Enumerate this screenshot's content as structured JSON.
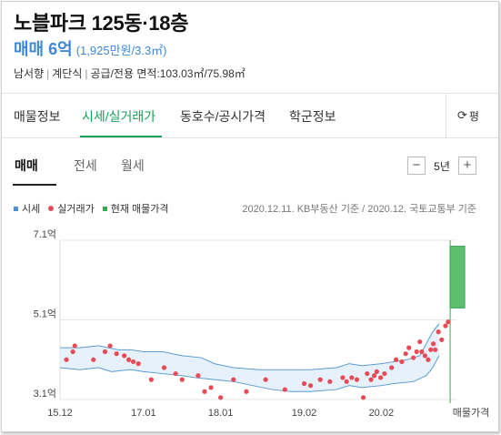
{
  "header": {
    "title": "노블파크 125동·18층",
    "price": "매매 6억",
    "price_detail": "(1,925만원/3.3㎡)"
  },
  "info": {
    "direction": "남서향",
    "structure": "계단식",
    "area": "공급/전용 면적:103.03㎡/75.98㎡"
  },
  "tabs": [
    {
      "label": "매물정보"
    },
    {
      "label": "시세/실거래가"
    },
    {
      "label": "동호수/공시가격"
    },
    {
      "label": "학군정보"
    }
  ],
  "refresh_label": "평",
  "subtabs": [
    {
      "label": "매매"
    },
    {
      "label": "전세"
    },
    {
      "label": "월세"
    }
  ],
  "period": {
    "minus": "−",
    "value": "5년",
    "plus": "+"
  },
  "legend": [
    {
      "label": "시세",
      "color": "#4a90d9"
    },
    {
      "label": "실거래가",
      "color": "#e84b55"
    },
    {
      "label": "현재 매물가격",
      "color": "#35a853"
    }
  ],
  "source_note": "2020.12.11. KB부동산 기준 / 2020.12. 국토교통부 기준",
  "chart_data": {
    "type": "scatter",
    "ylim": [
      3.1,
      7.1
    ],
    "y_ticks": [
      {
        "value": 7.1,
        "label": "7.1억"
      },
      {
        "value": 5.1,
        "label": "5.1억"
      },
      {
        "value": 3.1,
        "label": "3.1억"
      }
    ],
    "x_ticks": [
      {
        "t": 0,
        "label": "15.12"
      },
      {
        "t": 13,
        "label": "17.01"
      },
      {
        "t": 25,
        "label": "18.01"
      },
      {
        "t": 38,
        "label": "19.02"
      },
      {
        "t": 50,
        "label": "20.02"
      }
    ],
    "x_end_label": "매물가격",
    "t_range": [
      0,
      60
    ],
    "band_upper": [
      [
        0,
        4.4
      ],
      [
        3,
        4.4
      ],
      [
        6,
        4.45
      ],
      [
        9,
        4.35
      ],
      [
        11,
        4.35
      ],
      [
        13,
        4.3
      ],
      [
        16,
        4.3
      ],
      [
        19,
        4.2
      ],
      [
        22,
        4.15
      ],
      [
        24,
        4.0
      ],
      [
        27,
        3.9
      ],
      [
        31,
        3.85
      ],
      [
        35,
        3.85
      ],
      [
        39,
        3.85
      ],
      [
        43,
        3.9
      ],
      [
        45,
        4.0
      ],
      [
        47,
        3.95
      ],
      [
        50,
        4.0
      ],
      [
        52,
        4.05
      ],
      [
        54,
        4.1
      ],
      [
        56,
        4.2
      ],
      [
        57,
        4.5
      ],
      [
        58,
        4.8
      ],
      [
        59,
        5.0
      ]
    ],
    "band_lower": [
      [
        0,
        3.9
      ],
      [
        3,
        3.85
      ],
      [
        6,
        3.9
      ],
      [
        8,
        3.8
      ],
      [
        11,
        3.85
      ],
      [
        13,
        3.8
      ],
      [
        16,
        3.75
      ],
      [
        19,
        3.7
      ],
      [
        21,
        3.65
      ],
      [
        24,
        3.6
      ],
      [
        27,
        3.55
      ],
      [
        30,
        3.45
      ],
      [
        33,
        3.35
      ],
      [
        36,
        3.3
      ],
      [
        39,
        3.3
      ],
      [
        43,
        3.35
      ],
      [
        45,
        3.45
      ],
      [
        47,
        3.4
      ],
      [
        50,
        3.45
      ],
      [
        52,
        3.5
      ],
      [
        55,
        3.55
      ],
      [
        57,
        3.7
      ],
      [
        58,
        3.9
      ],
      [
        59,
        4.2
      ]
    ],
    "transactions": [
      [
        1,
        4.1
      ],
      [
        2,
        4.3
      ],
      [
        2.3,
        4.45
      ],
      [
        5.2,
        4.1
      ],
      [
        7,
        4.3
      ],
      [
        7.8,
        4.45
      ],
      [
        8.8,
        4.25
      ],
      [
        10,
        4.2
      ],
      [
        10.7,
        4.1
      ],
      [
        11.4,
        4.05
      ],
      [
        12.2,
        4.0
      ],
      [
        14.2,
        3.6
      ],
      [
        16.2,
        3.9
      ],
      [
        18,
        3.75
      ],
      [
        19,
        3.6
      ],
      [
        21.5,
        3.7
      ],
      [
        22.5,
        3.3
      ],
      [
        23.5,
        3.4
      ],
      [
        25,
        3.15
      ],
      [
        27,
        3.6
      ],
      [
        29,
        3.3
      ],
      [
        32,
        3.6
      ],
      [
        35,
        3.35
      ],
      [
        38,
        3.5
      ],
      [
        39,
        3.45
      ],
      [
        40.5,
        3.6
      ],
      [
        42,
        3.55
      ],
      [
        44,
        3.65
      ],
      [
        44.6,
        3.55
      ],
      [
        45.4,
        3.65
      ],
      [
        46.2,
        3.6
      ],
      [
        47.2,
        3.15
      ],
      [
        47.8,
        3.75
      ],
      [
        48.4,
        3.6
      ],
      [
        48.9,
        3.7
      ],
      [
        49.3,
        3.8
      ],
      [
        49.9,
        3.65
      ],
      [
        50.5,
        3.75
      ],
      [
        51.6,
        3.9
      ],
      [
        52.3,
        4.1
      ],
      [
        53.2,
        4.05
      ],
      [
        53.8,
        4.25
      ],
      [
        54.3,
        4.4
      ],
      [
        55,
        4.15
      ],
      [
        55.5,
        4.3
      ],
      [
        56,
        4.55
      ],
      [
        56.3,
        4.3
      ],
      [
        56.8,
        4.2
      ],
      [
        57.3,
        4.1
      ],
      [
        57.7,
        4.35
      ],
      [
        58.1,
        4.5
      ],
      [
        58.4,
        4.35
      ],
      [
        58.9,
        4.8
      ],
      [
        59.4,
        4.6
      ],
      [
        60,
        4.95
      ],
      [
        60.4,
        5.05
      ]
    ],
    "listing": {
      "t": 61,
      "low": 5.4,
      "high": 6.95
    }
  }
}
